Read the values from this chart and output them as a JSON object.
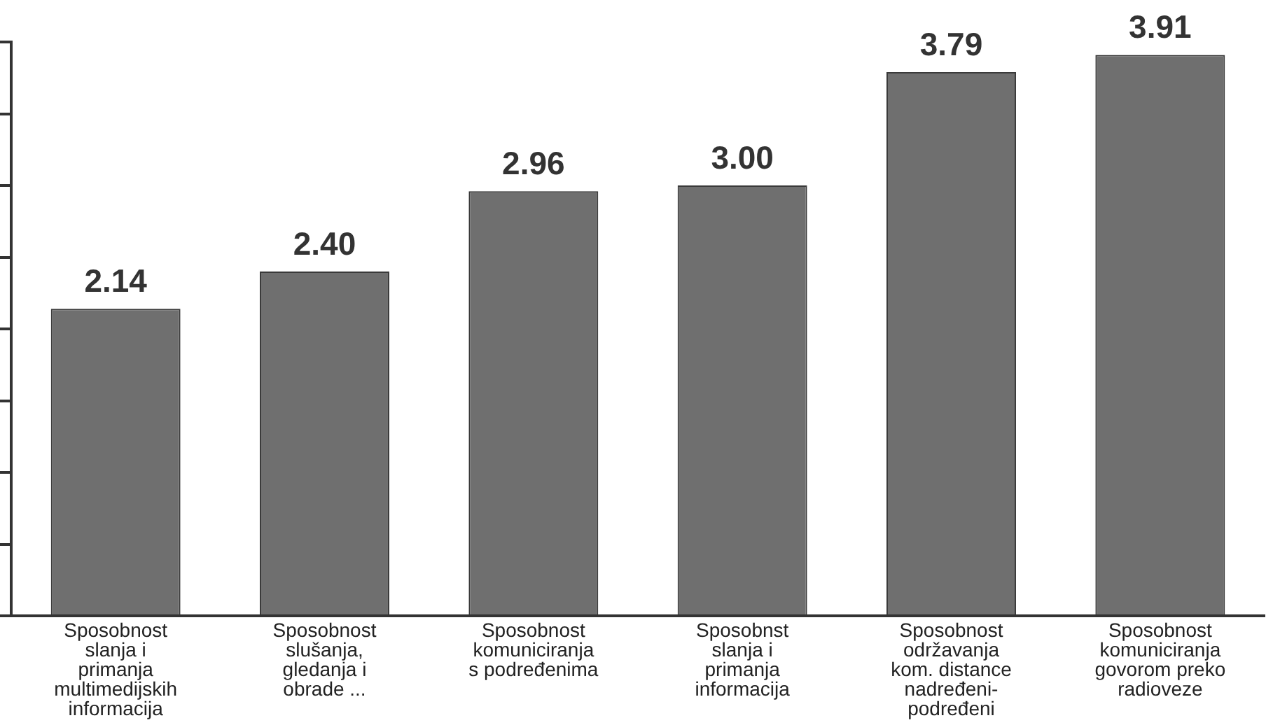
{
  "chart_data": {
    "type": "bar",
    "categories": [
      "Sposobnost slanja i primanja multimedijskih informacija",
      "Sposobnost slušanja, gledanja i obrade ...",
      "Sposobnost komuniciranja s podređenima",
      "Sposobnst slanja i primanja informacija",
      "Sposobnost održavanja kom. distance nadređeni- podređeni",
      "Sposobnost komuniciranja govorom preko radioveze"
    ],
    "values": [
      2.14,
      2.4,
      2.96,
      3.0,
      3.79,
      3.91
    ],
    "value_labels": [
      "2.14",
      "2.40",
      "2.96",
      "3.00",
      "3.79",
      "3.91"
    ],
    "color": "#6f6f6f",
    "ylim": [
      0,
      4
    ],
    "yticks": [
      {
        "value": 0,
        "label": null
      },
      {
        "value": 0.5,
        "label": null
      },
      {
        "value": 1,
        "label": null
      },
      {
        "value": 1.5,
        "label": null
      },
      {
        "value": 2,
        "label": null
      },
      {
        "value": 2.5,
        "label": null
      },
      {
        "value": 3,
        "label": null
      },
      {
        "value": 3.5,
        "label": null
      },
      {
        "value": 4,
        "label": null
      }
    ],
    "grid": false,
    "legend": false
  }
}
